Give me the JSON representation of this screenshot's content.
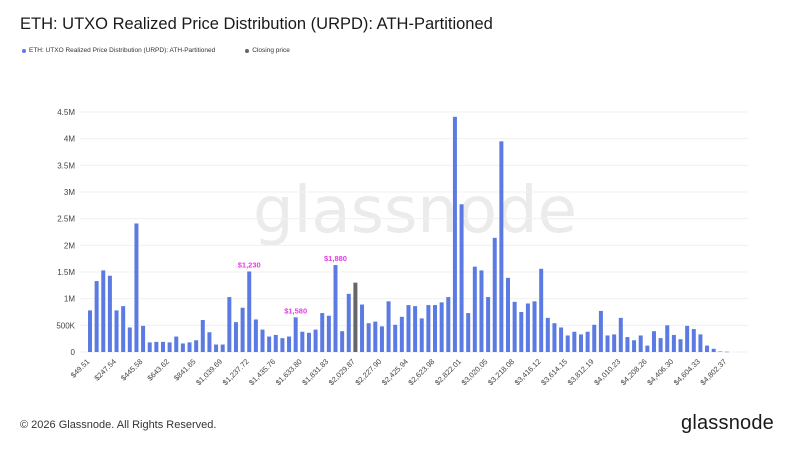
{
  "header": {
    "title": "ETH: UTXO Realized Price Distribution (URPD): ATH-Partitioned"
  },
  "legend": [
    {
      "label": "ETH: UTXO Realized Price Distribution (URPD): ATH-Partitioned",
      "color": "#5b7be3"
    },
    {
      "label": "Closing price",
      "color": "#666666"
    }
  ],
  "watermark": "glassnode",
  "footer": {
    "copyright": "© 2026 Glassnode. All Rights Reserved.",
    "logo": "glassnode"
  },
  "chart_data": {
    "type": "bar",
    "title": "ETH: UTXO Realized Price Distribution (URPD): ATH-Partitioned",
    "xlabel": "",
    "ylabel": "",
    "ylim": [
      0,
      4500000
    ],
    "grid": true,
    "legend_position": "top-left",
    "y_ticks": [
      "0",
      "500K",
      "1M",
      "1.5M",
      "2M",
      "2.5M",
      "3M",
      "3.5M",
      "4M",
      "4.5M"
    ],
    "x_tick_labels": [
      "$49.51",
      "$247.54",
      "$445.58",
      "$643.62",
      "$841.65",
      "$1,039.69",
      "$1,237.72",
      "$1,435.76",
      "$1,633.80",
      "$1,831.83",
      "$2,029.87",
      "$2,227.90",
      "$2,425.94",
      "$2,623.98",
      "$2,822.01",
      "$3,020.05",
      "$3,218.08",
      "$3,416.12",
      "$3,614.15",
      "$3,812.19",
      "$4,010.23",
      "$4,208.26",
      "$4,406.30",
      "$4,604.33",
      "$4,802.37"
    ],
    "bin_start": 49.51,
    "bin_width": 49.51,
    "closing_price_bin": 40,
    "colors": {
      "series": "#5b7be3",
      "closing": "#666666",
      "annotation": "#e43ee4"
    },
    "annotations": [
      {
        "bin": 24,
        "text": "$1,230"
      },
      {
        "bin": 31,
        "text": "$1,580"
      },
      {
        "bin": 37,
        "text": "$1,880"
      }
    ],
    "series": [
      {
        "name": "ETH: UTXO Realized Price Distribution (URPD): ATH-Partitioned",
        "values": [
          780000,
          1330000,
          1530000,
          1430000,
          780000,
          860000,
          460000,
          2410000,
          490000,
          180000,
          190000,
          190000,
          180000,
          290000,
          160000,
          180000,
          220000,
          600000,
          370000,
          140000,
          140000,
          1030000,
          560000,
          830000,
          1510000,
          610000,
          420000,
          290000,
          320000,
          260000,
          290000,
          650000,
          380000,
          360000,
          420000,
          730000,
          680000,
          1630000,
          390000,
          1090000,
          1300000,
          890000,
          540000,
          570000,
          480000,
          950000,
          510000,
          660000,
          880000,
          860000,
          630000,
          880000,
          880000,
          930000,
          1030000,
          4410000,
          2770000,
          730000,
          1600000,
          1530000,
          1030000,
          2140000,
          3950000,
          1390000,
          940000,
          750000,
          910000,
          950000,
          1560000,
          640000,
          540000,
          460000,
          310000,
          380000,
          330000,
          380000,
          510000,
          770000,
          310000,
          330000,
          640000,
          280000,
          220000,
          310000,
          120000,
          390000,
          260000,
          500000,
          320000,
          240000,
          490000,
          430000,
          330000,
          120000,
          60000,
          10000,
          5000
        ]
      }
    ]
  }
}
